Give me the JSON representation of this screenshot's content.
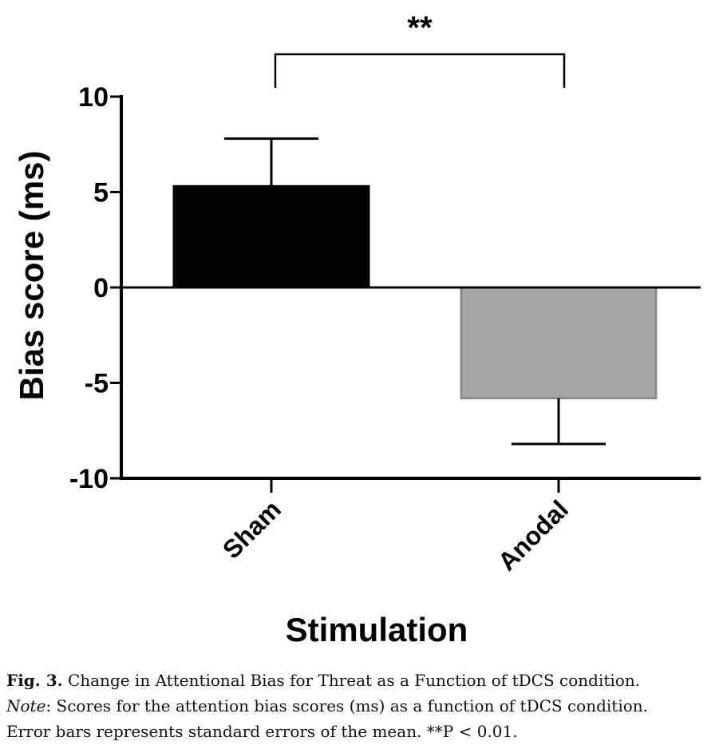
{
  "chart_data": {
    "type": "bar",
    "categories": [
      "Sham",
      "Anodal"
    ],
    "values": [
      5.3,
      -5.8
    ],
    "errors": [
      2.5,
      2.4
    ],
    "colors": [
      "#000000",
      "#a6a6a6"
    ],
    "ylabel": "Bias score (ms)",
    "xlabel": "Stimulation",
    "ylim": [
      -10,
      10
    ],
    "yticks": [
      -10,
      -5,
      0,
      5,
      10
    ],
    "ytick_labels": [
      "-10",
      "-5",
      "0",
      "5",
      "10"
    ],
    "grid": false,
    "significance": {
      "between": [
        "Sham",
        "Anodal"
      ],
      "label": "**"
    }
  },
  "caption": {
    "fig_label": "Fig. 3.",
    "line1": " Change in Attentional Bias for Threat as a Function of tDCS condition.",
    "note_label": "Note",
    "line2": ": Scores for the attention bias scores (ms) as a function of tDCS condition.",
    "line3": "Error bars represents standard errors of the mean. **P < 0.01."
  }
}
